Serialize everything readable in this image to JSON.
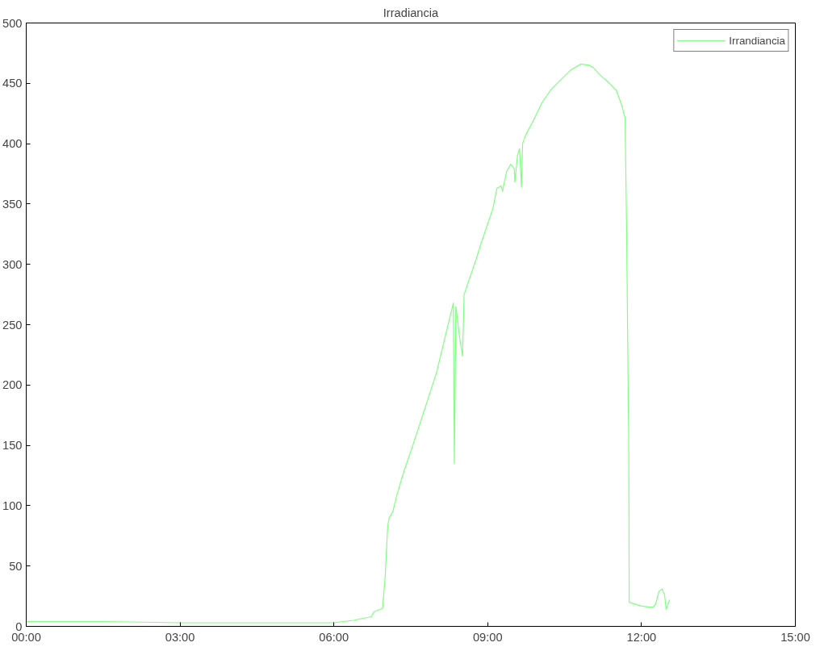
{
  "chart_data": {
    "type": "line",
    "title": "Irradiancia",
    "xlim": [
      0,
      15
    ],
    "xticks": [
      {
        "value": 0,
        "label": "00:00"
      },
      {
        "value": 3,
        "label": "03:00"
      },
      {
        "value": 6,
        "label": "06:00"
      },
      {
        "value": 9,
        "label": "09:00"
      },
      {
        "value": 12,
        "label": "12:00"
      },
      {
        "value": 15,
        "label": "15:00"
      }
    ],
    "ylim": [
      0,
      500
    ],
    "yticks": [
      0,
      50,
      100,
      150,
      200,
      250,
      300,
      350,
      400,
      450,
      500
    ],
    "grid": false,
    "legend": "top right",
    "series": [
      {
        "name": "Irrandiancia",
        "color": "#80ff80",
        "x": [
          0,
          1.5,
          3,
          4.5,
          6.0,
          6.38,
          6.73,
          6.78,
          6.95,
          7.0,
          7.05,
          7.08,
          7.15,
          7.23,
          7.37,
          7.5,
          7.61,
          8.0,
          8.33,
          8.35,
          8.38,
          8.45,
          8.51,
          8.54,
          8.78,
          8.86,
          9.1,
          9.18,
          9.26,
          9.29,
          9.37,
          9.45,
          9.52,
          9.53,
          9.58,
          9.62,
          9.66,
          9.68,
          9.74,
          9.9,
          10.06,
          10.22,
          10.38,
          10.62,
          10.82,
          10.98,
          11.06,
          11.19,
          11.35,
          11.51,
          11.62,
          11.68,
          11.71,
          11.75,
          11.76,
          11.83,
          11.99,
          12.15,
          12.23,
          12.28,
          12.34,
          12.4,
          12.45,
          12.48,
          12.52,
          12.55
        ],
        "values": [
          4,
          4,
          3,
          3,
          3,
          5,
          8,
          12,
          15,
          41,
          83,
          90,
          95,
          109,
          129,
          145,
          159,
          210,
          268,
          135,
          265,
          240,
          224,
          275,
          305,
          316,
          346,
          363,
          365,
          361,
          377,
          383,
          379,
          368,
          390,
          396,
          364,
          400,
          407,
          420,
          434,
          444,
          451,
          461,
          466,
          465,
          463,
          457,
          451,
          444,
          431,
          421,
          326,
          156,
          20,
          19,
          17,
          16,
          16,
          19,
          29,
          31,
          26,
          14,
          19,
          22
        ]
      }
    ]
  }
}
